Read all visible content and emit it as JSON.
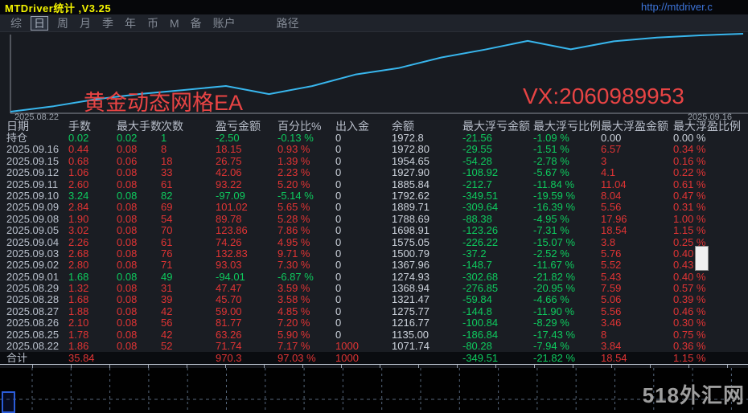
{
  "window": {
    "title": "MTDriver统计 ,V3.25",
    "url": "http://mtdriver.c"
  },
  "toolbar": {
    "tabs": [
      "综",
      "日",
      "周",
      "月",
      "季",
      "年",
      "币",
      "M",
      "备",
      "账户"
    ],
    "active_tab": "日",
    "path_label": "路径"
  },
  "chart": {
    "annotation_left": "黄金动态网格EA",
    "annotation_right": "VX:2060989953",
    "x_start_label": "2025.08.22",
    "x_end_label": "2025.09.16",
    "line_color": "#38b6ed",
    "axis_color": "#8a8f99",
    "annotation_color": "#e84444"
  },
  "chart_data": {
    "type": "line",
    "title": "黄金动态网格EA",
    "xlabel": "",
    "ylabel": "",
    "legend": [],
    "grid": false,
    "x": [
      "2025.08.22",
      "2025.08.25",
      "2025.08.26",
      "2025.08.27",
      "2025.08.28",
      "2025.08.29",
      "2025.09.01",
      "2025.09.02",
      "2025.09.03",
      "2025.09.04",
      "2025.09.05",
      "2025.09.08",
      "2025.09.09",
      "2025.09.10",
      "2025.09.11",
      "2025.09.12",
      "2025.09.15",
      "2025.09.16"
    ],
    "values": [
      1071.74,
      1135.0,
      1216.77,
      1275.77,
      1321.47,
      1368.94,
      1274.93,
      1367.96,
      1500.79,
      1575.05,
      1698.91,
      1788.69,
      1889.71,
      1792.62,
      1885.84,
      1927.9,
      1954.65,
      1972.8
    ],
    "ylim": [
      1050,
      2000
    ]
  },
  "table": {
    "headers": [
      "日期",
      "手数",
      "最大手数",
      "次数",
      "盈亏金额",
      "百分比%",
      "出入金",
      "余额",
      "最大浮亏金额",
      "最大浮亏比例",
      "最大浮盈金额",
      "最大浮盈比例"
    ],
    "rows": [
      [
        "持仓",
        "0.02",
        "0.02",
        "1",
        "-2.50",
        "-0.13 %",
        "0",
        "1972.8",
        "-21.56",
        "-1.09 %",
        "0.00",
        "0.00 %"
      ],
      [
        "2025.09.16",
        "0.44",
        "0.08",
        "8",
        "18.15",
        "0.93 %",
        "0",
        "1972.80",
        "-29.55",
        "-1.51 %",
        "6.57",
        "0.34 %"
      ],
      [
        "2025.09.15",
        "0.68",
        "0.06",
        "18",
        "26.75",
        "1.39 %",
        "0",
        "1954.65",
        "-54.28",
        "-2.78 %",
        "3",
        "0.16 %"
      ],
      [
        "2025.09.12",
        "1.06",
        "0.08",
        "33",
        "42.06",
        "2.23 %",
        "0",
        "1927.90",
        "-108.92",
        "-5.67 %",
        "4.1",
        "0.22 %"
      ],
      [
        "2025.09.11",
        "2.60",
        "0.08",
        "61",
        "93.22",
        "5.20 %",
        "0",
        "1885.84",
        "-212.7",
        "-11.84 %",
        "11.04",
        "0.61 %"
      ],
      [
        "2025.09.10",
        "3.24",
        "0.08",
        "82",
        "-97.09",
        "-5.14 %",
        "0",
        "1792.62",
        "-349.51",
        "-19.59 %",
        "8.04",
        "0.47 %"
      ],
      [
        "2025.09.09",
        "2.84",
        "0.08",
        "69",
        "101.02",
        "5.65 %",
        "0",
        "1889.71",
        "-309.64",
        "-16.39 %",
        "5.56",
        "0.31 %"
      ],
      [
        "2025.09.08",
        "1.90",
        "0.08",
        "54",
        "89.78",
        "5.28 %",
        "0",
        "1788.69",
        "-88.38",
        "-4.95 %",
        "17.96",
        "1.00 %"
      ],
      [
        "2025.09.05",
        "3.02",
        "0.08",
        "70",
        "123.86",
        "7.86 %",
        "0",
        "1698.91",
        "-123.26",
        "-7.31 %",
        "18.54",
        "1.15 %"
      ],
      [
        "2025.09.04",
        "2.26",
        "0.08",
        "61",
        "74.26",
        "4.95 %",
        "0",
        "1575.05",
        "-226.22",
        "-15.07 %",
        "3.8",
        "0.25 %"
      ],
      [
        "2025.09.03",
        "2.68",
        "0.08",
        "76",
        "132.83",
        "9.71 %",
        "0",
        "1500.79",
        "-37.2",
        "-2.52 %",
        "5.76",
        "0.40 %"
      ],
      [
        "2025.09.02",
        "2.80",
        "0.08",
        "71",
        "93.03",
        "7.30 %",
        "0",
        "1367.96",
        "-148.7",
        "-11.67 %",
        "5.52",
        "0.43 %"
      ],
      [
        "2025.09.01",
        "1.68",
        "0.08",
        "49",
        "-94.01",
        "-6.87 %",
        "0",
        "1274.93",
        "-302.68",
        "-21.82 %",
        "5.43",
        "0.40 %"
      ],
      [
        "2025.08.29",
        "1.32",
        "0.08",
        "31",
        "47.47",
        "3.59 %",
        "0",
        "1368.94",
        "-276.85",
        "-20.95 %",
        "7.59",
        "0.57 %"
      ],
      [
        "2025.08.28",
        "1.68",
        "0.08",
        "39",
        "45.70",
        "3.58 %",
        "0",
        "1321.47",
        "-59.84",
        "-4.66 %",
        "5.06",
        "0.39 %"
      ],
      [
        "2025.08.27",
        "1.88",
        "0.08",
        "42",
        "59.00",
        "4.85 %",
        "0",
        "1275.77",
        "-144.8",
        "-11.90 %",
        "5.56",
        "0.46 %"
      ],
      [
        "2025.08.26",
        "2.10",
        "0.08",
        "56",
        "81.77",
        "7.20 %",
        "0",
        "1216.77",
        "-100.84",
        "-8.29 %",
        "3.46",
        "0.30 %"
      ],
      [
        "2025.08.25",
        "1.78",
        "0.08",
        "42",
        "63.26",
        "5.90 %",
        "0",
        "1135.00",
        "-186.84",
        "-17.43 %",
        "8",
        "0.75 %"
      ],
      [
        "2025.08.22",
        "1.86",
        "0.08",
        "52",
        "71.74",
        "7.17 %",
        "1000",
        "1071.74",
        "-80.28",
        "-7.94 %",
        "3.84",
        "0.36 %"
      ]
    ],
    "total_row": [
      "合计",
      "35.84",
      "",
      "",
      "970.3",
      "97.03 %",
      "1000",
      "",
      "-349.51",
      "-21.82 %",
      "18.54",
      "1.15 %"
    ]
  },
  "footer": {
    "watermark": "518外汇网"
  },
  "colors": {
    "red": "#e13434",
    "green": "#0ecb5e",
    "neutral": "#ccd2db",
    "date": "#b9c0cc"
  }
}
